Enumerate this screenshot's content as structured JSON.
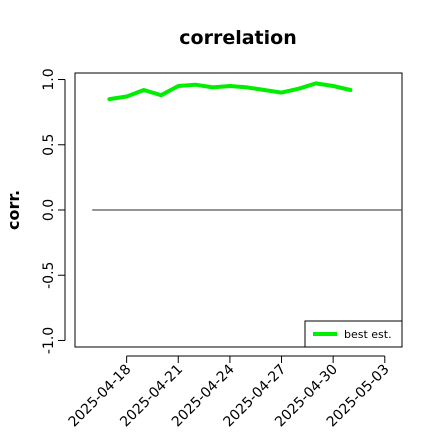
{
  "chart_data": {
    "type": "line",
    "title": "correlation",
    "ylabel": "corr.",
    "xlabel": "",
    "ylim": [
      -1.05,
      1.05
    ],
    "yticks": [
      -1.0,
      -0.5,
      0.0,
      0.5,
      1.0
    ],
    "ytick_labels": [
      "-1.0",
      "-0.5",
      "0.0",
      "0.5",
      "1.0"
    ],
    "xlim": [
      "2025-04-15",
      "2025-05-04"
    ],
    "xticks": [
      "2025-04-18",
      "2025-04-21",
      "2025-04-24",
      "2025-04-27",
      "2025-04-30",
      "2025-05-03"
    ],
    "highlighted_xtick": "2025-04-24",
    "highlight_color": "#228B22",
    "grid": false,
    "legend_position": "bottom-right",
    "series": [
      {
        "name": "best est.",
        "color": "#00ee00",
        "x": [
          "2025-04-17",
          "2025-04-18",
          "2025-04-19",
          "2025-04-20",
          "2025-04-21",
          "2025-04-22",
          "2025-04-23",
          "2025-04-24",
          "2025-04-25",
          "2025-04-26",
          "2025-04-27",
          "2025-04-28",
          "2025-04-29",
          "2025-04-30",
          "2025-05-01"
        ],
        "values": [
          0.85,
          0.87,
          0.92,
          0.88,
          0.95,
          0.96,
          0.94,
          0.95,
          0.94,
          0.92,
          0.9,
          0.93,
          0.97,
          0.95,
          0.92
        ]
      }
    ],
    "reference_lines": [
      {
        "y": 0.0,
        "x_start": "2025-04-16",
        "x_end": "2025-05-04",
        "color": "#555555"
      }
    ]
  }
}
